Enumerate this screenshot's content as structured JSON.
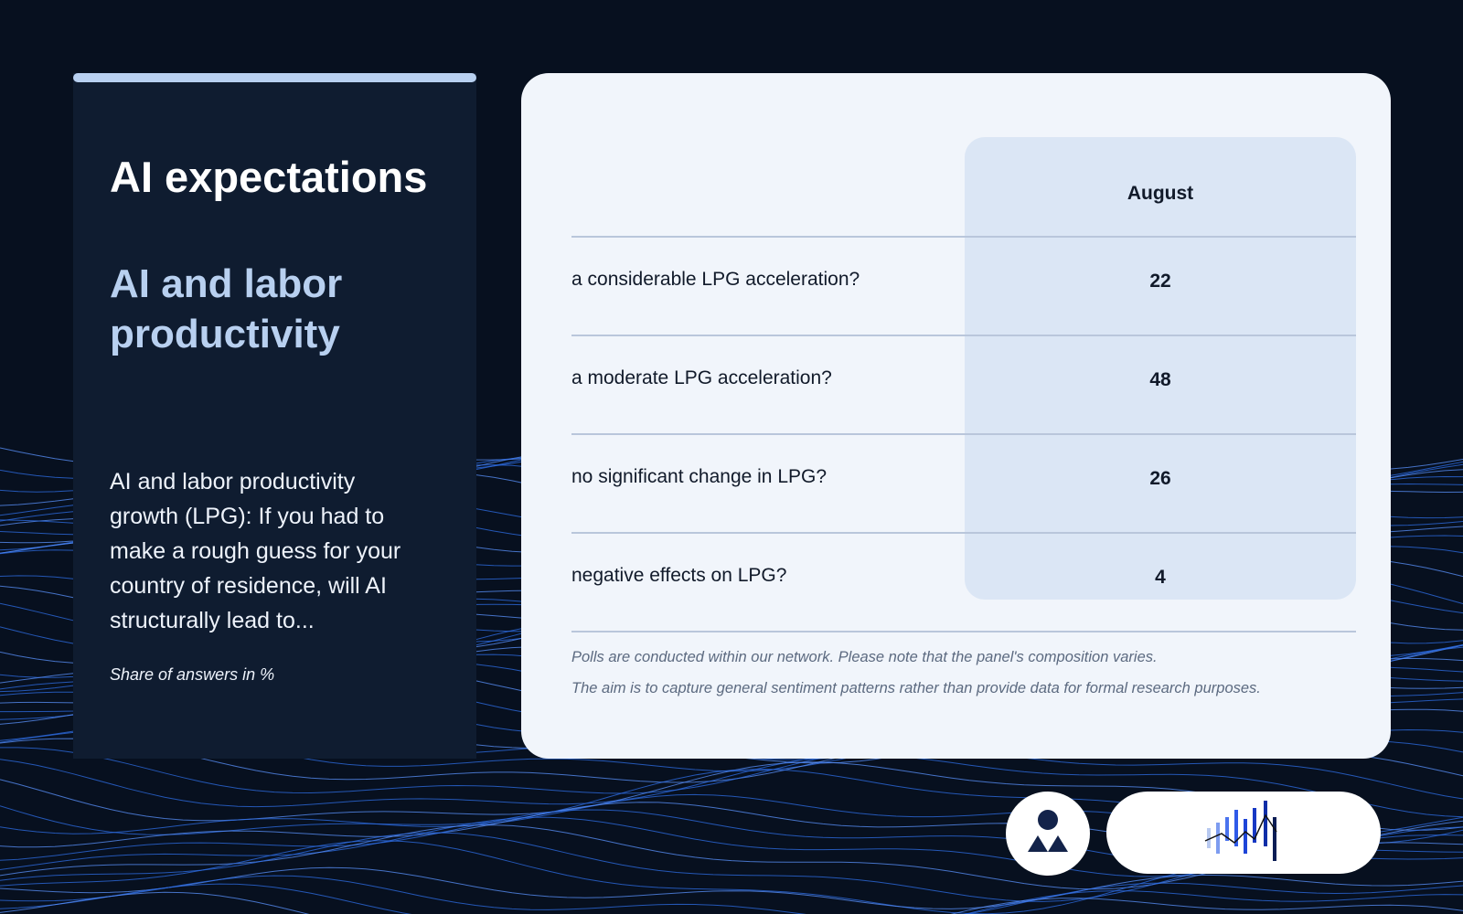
{
  "header": {
    "title": "AI expectations",
    "subtitle": "AI and labor productivity",
    "question": "AI and labor productivity growth (LPG): If you had to make a rough guess for your country of residence, will AI structurally lead to...",
    "unit_note": "Share of answers in %"
  },
  "table": {
    "column": "August",
    "rows": [
      {
        "label": "a considerable LPG acceleration?",
        "value": 22
      },
      {
        "label": "a moderate LPG acceleration?",
        "value": 48
      },
      {
        "label": "no significant change in LPG?",
        "value": 26
      },
      {
        "label": "negative effects on LPG?",
        "value": 4
      }
    ]
  },
  "footnotes": [
    "Polls are conducted within our network. Please note that the panel's composition varies.",
    "The aim is to capture general sentiment patterns rather than provide data for formal research purposes."
  ]
}
